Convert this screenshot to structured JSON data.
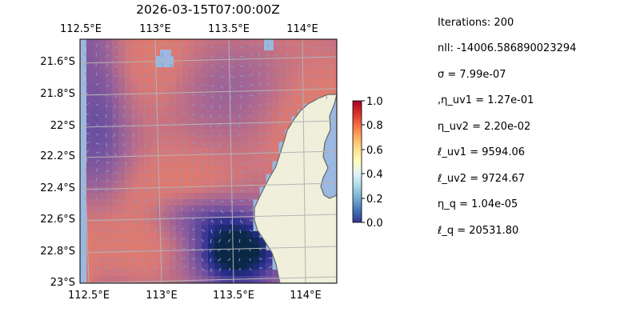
{
  "title": "2026-03-15T07:00:00Z",
  "colors": {
    "ocean": "#9ab8e0",
    "land": "#efefdc",
    "coast": "#666666",
    "grid": "#b4b4b4",
    "arrow": "#8a9ac8"
  },
  "map": {
    "projection": "lon-lat",
    "lon_range": [
      112.5,
      114.2
    ],
    "lat_range": [
      -23.0,
      -21.5
    ],
    "grid": true,
    "top_lon_ticks": [
      "112.5°E",
      "113°E",
      "113.5°E",
      "114°E"
    ],
    "bottom_lon_ticks": [
      "112.5°E",
      "113°E",
      "113.5°E",
      "114°E"
    ],
    "lat_ticks": [
      "21.6°S",
      "21.8°S",
      "22°S",
      "22.2°S",
      "22.4°S",
      "22.6°S",
      "22.8°S",
      "23°S"
    ],
    "colormap": "RdYlBu_r",
    "overlay": "normalized field heatmap with current-vector arrows"
  },
  "colorbar": {
    "min": 0.0,
    "max": 1.0,
    "ticks": [
      "0.0",
      "0.2",
      "0.4",
      "0.6",
      "0.8",
      "1.0"
    ]
  },
  "stats": [
    "Iterations: 200",
    "nll: -14006.586890023294",
    "σ = 7.99e-07",
    ",η_uv1 = 1.27e-01",
    "η_uv2 = 2.20e-02",
    "ℓ_uv1 = 9594.06",
    "ℓ_uv2 = 9724.67",
    "η_q = 1.04e-05",
    "ℓ_q = 20531.80"
  ]
}
